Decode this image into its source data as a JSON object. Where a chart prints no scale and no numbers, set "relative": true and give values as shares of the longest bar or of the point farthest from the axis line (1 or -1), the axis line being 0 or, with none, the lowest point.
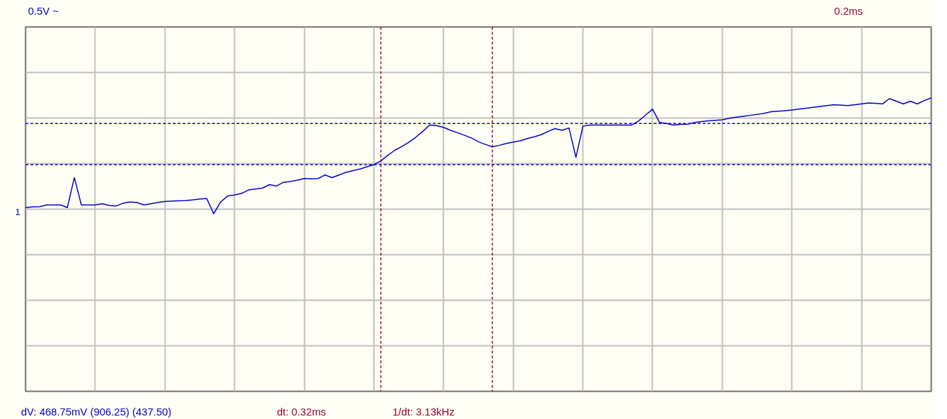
{
  "chart_data": {
    "type": "line",
    "title": "0.5V ~",
    "relative": true,
    "categories": [
      null,
      null,
      null,
      null,
      null,
      null,
      null,
      null,
      null,
      null,
      null,
      null,
      null,
      null,
      null,
      null,
      null,
      null,
      null,
      null,
      null,
      null,
      null,
      null,
      null,
      null,
      null,
      null,
      null,
      null,
      null,
      null,
      null,
      null,
      null,
      null,
      null,
      null,
      null,
      null,
      null,
      null,
      null,
      null,
      null,
      null,
      null,
      null,
      null,
      null,
      null,
      null,
      null,
      null,
      null,
      null,
      null,
      null,
      null,
      null,
      null,
      null,
      null,
      null,
      null,
      null,
      null,
      null,
      null,
      null,
      null,
      null,
      null,
      null,
      null,
      null,
      null,
      null,
      null,
      null,
      null,
      null,
      null,
      null,
      null,
      null,
      null,
      null,
      null,
      null,
      null,
      null,
      null,
      null,
      null,
      null,
      null,
      null,
      null,
      null,
      null,
      null,
      null,
      null,
      null,
      null,
      null,
      null,
      null,
      null,
      null,
      null,
      null,
      null,
      null,
      null,
      null,
      null,
      null,
      null,
      null,
      null,
      null,
      null,
      null,
      null,
      null,
      null,
      null,
      null,
      null
    ],
    "series": [
      {
        "color": "#0000cc",
        "values": [
          0.626,
          0.628,
          0.629,
          0.635,
          0.635,
          0.635,
          0.626,
          0.728,
          0.635,
          0.635,
          0.635,
          0.639,
          0.633,
          0.631,
          0.641,
          0.645,
          0.643,
          0.635,
          0.639,
          0.643,
          0.647,
          0.648,
          0.649,
          0.65,
          0.652,
          0.655,
          0.657,
          0.605,
          0.645,
          0.665,
          0.669,
          0.674,
          0.686,
          0.689,
          0.692,
          0.704,
          0.699,
          0.712,
          0.715,
          0.719,
          0.725,
          0.724,
          0.725,
          0.737,
          0.728,
          0.737,
          0.746,
          0.752,
          0.757,
          0.765,
          0.772,
          0.785,
          0.804,
          0.821,
          0.834,
          0.848,
          0.865,
          0.885,
          0.907,
          0.905,
          0.899,
          0.889,
          0.881,
          0.872,
          0.863,
          0.85,
          0.841,
          0.833,
          0.838,
          0.844,
          0.849,
          0.853,
          0.861,
          0.867,
          0.874,
          0.885,
          0.895,
          0.889,
          0.897,
          0.797,
          0.903,
          0.907,
          0.907,
          0.907,
          0.907,
          0.907,
          0.907,
          0.907,
          0.921,
          0.941,
          0.961,
          0.916,
          0.912,
          0.907,
          0.909,
          0.91,
          0.915,
          0.919,
          0.921,
          0.923,
          0.925,
          0.93,
          0.934,
          0.937,
          0.94,
          0.943,
          0.947,
          0.952,
          0.954,
          0.956,
          0.958,
          0.961,
          0.964,
          0.967,
          0.97,
          0.973,
          0.976,
          0.975,
          0.973,
          0.976,
          0.979,
          0.982,
          0.981,
          0.979,
          0.997,
          0.988,
          0.979,
          0.988,
          0.979,
          0.99,
          1
        ]
      }
    ],
    "tick_labels": false,
    "grid": true,
    "ref_lines": [
      {
        "axis": "y",
        "value": 0.912,
        "color": "#0000cc",
        "line_style": "dashed"
      },
      {
        "axis": "y",
        "value": 0.772,
        "color": "#0000cc",
        "line_style": "dashed"
      }
    ],
    "annotations": [
      "1",
      "0.2ms",
      "dV: 468.75mV  (906.25) (437.50)",
      "dt: 0.32ms",
      "1/dt: 3.13kHz"
    ]
  }
}
